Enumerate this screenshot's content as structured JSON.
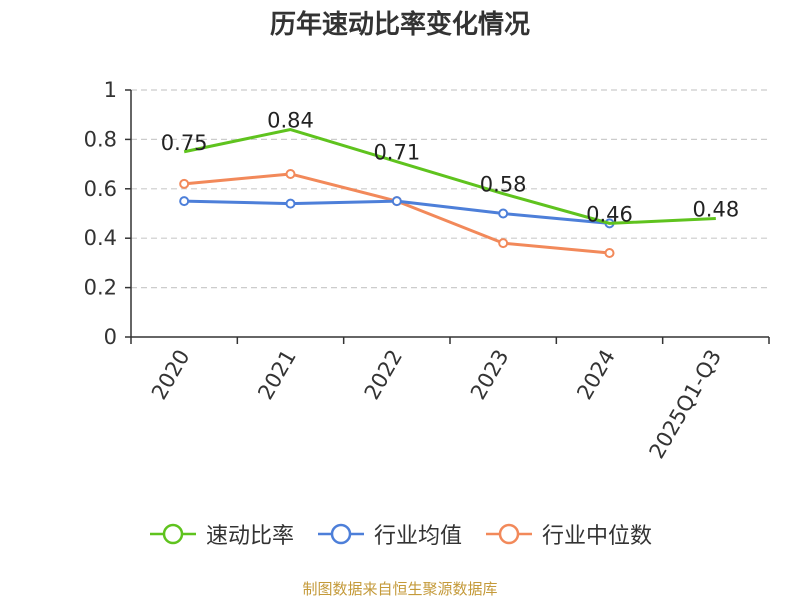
{
  "chart_data": {
    "type": "line",
    "title": "历年速动比率变化情况",
    "categories": [
      "2020",
      "2021",
      "2022",
      "2023",
      "2024",
      "2025Q1-Q3"
    ],
    "ylim": [
      0,
      1
    ],
    "yticks": [
      "0",
      "0.2",
      "0.4",
      "0.6",
      "0.8",
      "1"
    ],
    "grid": true,
    "legend_position": "bottom",
    "series": [
      {
        "name": "速动比率",
        "color": "#5fc31e",
        "values": [
          0.75,
          0.84,
          0.71,
          0.58,
          0.46,
          0.48
        ],
        "labels": [
          "0.75",
          "0.84",
          "0.71",
          "0.58",
          "0.46",
          "0.48"
        ]
      },
      {
        "name": "行业均值",
        "color": "#4d7fd9",
        "values": [
          0.55,
          0.54,
          0.55,
          0.5,
          0.46,
          null
        ]
      },
      {
        "name": "行业中位数",
        "color": "#f2895a",
        "values": [
          0.62,
          0.66,
          0.55,
          0.38,
          0.34,
          null
        ]
      }
    ]
  },
  "source_note": "制图数据来自恒生聚源数据库"
}
